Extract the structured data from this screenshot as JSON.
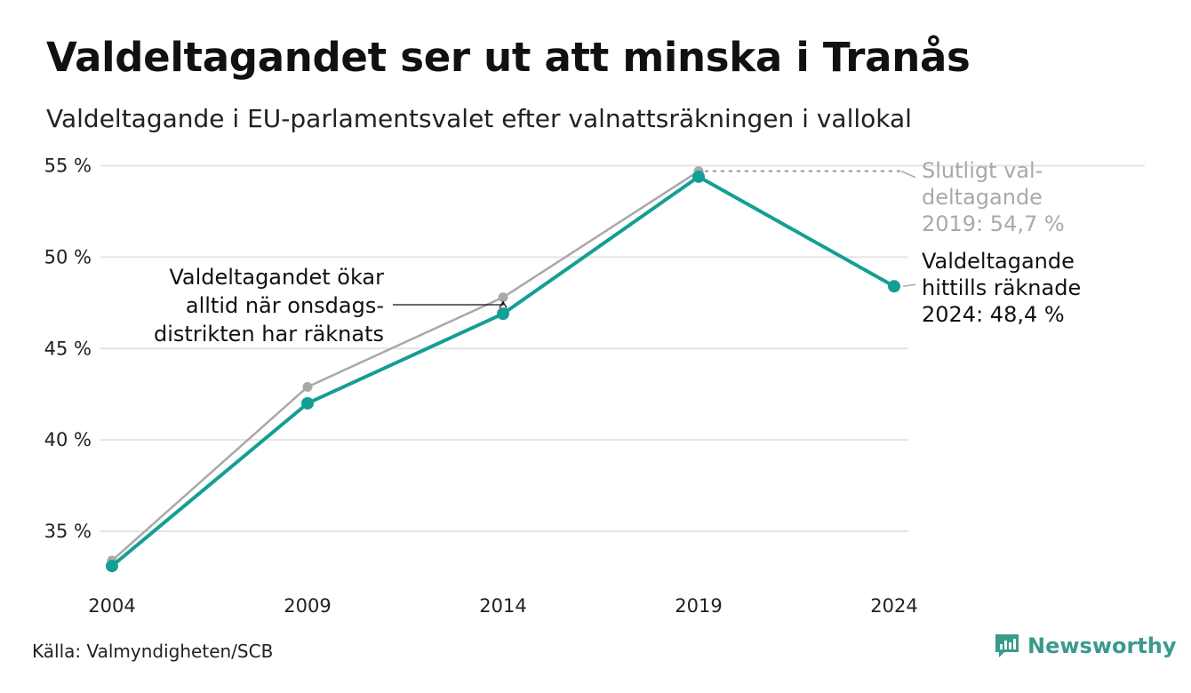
{
  "header": {
    "title": "Valdeltagandet ser ut att minska i Tranås",
    "subtitle": "Valdeltagande i EU-parlamentsvalet efter valnattsräkningen i vallokal"
  },
  "footer": {
    "source": "Källa: Valmyndigheten/SCB",
    "brand": "Newsworthy"
  },
  "colors": {
    "accent": "#149e94",
    "final": "#a9a9a9",
    "grid": "#e4e4e4",
    "text": "#222222",
    "brand": "#3a9a8c"
  },
  "chart_data": {
    "type": "line",
    "x": [
      "2004",
      "2009",
      "2014",
      "2019",
      "2024"
    ],
    "series": [
      {
        "values": [
          33.4,
          42.9,
          47.8,
          54.7,
          null
        ],
        "color": "#a9a9a9"
      },
      {
        "values": [
          33.1,
          42.0,
          46.9,
          54.4,
          48.4
        ],
        "color": "#149e94"
      }
    ],
    "yticks": [
      35,
      40,
      45,
      50,
      55
    ],
    "ytick_labels": [
      "35 %",
      "40 %",
      "45 %",
      "50 %",
      "55 %"
    ],
    "ylim": [
      32.6,
      55.2
    ],
    "grid": true,
    "annotations": {
      "onsdag": [
        "Valdeltagandet ökar",
        "alltid när onsdags-",
        "distrikten har räknats"
      ],
      "final": [
        "Slutligt val-",
        "deltagande",
        "2019: 54,7 %"
      ],
      "current": [
        "Valdeltagande",
        "hittills räknade",
        "2024: 48,4 %"
      ]
    }
  }
}
